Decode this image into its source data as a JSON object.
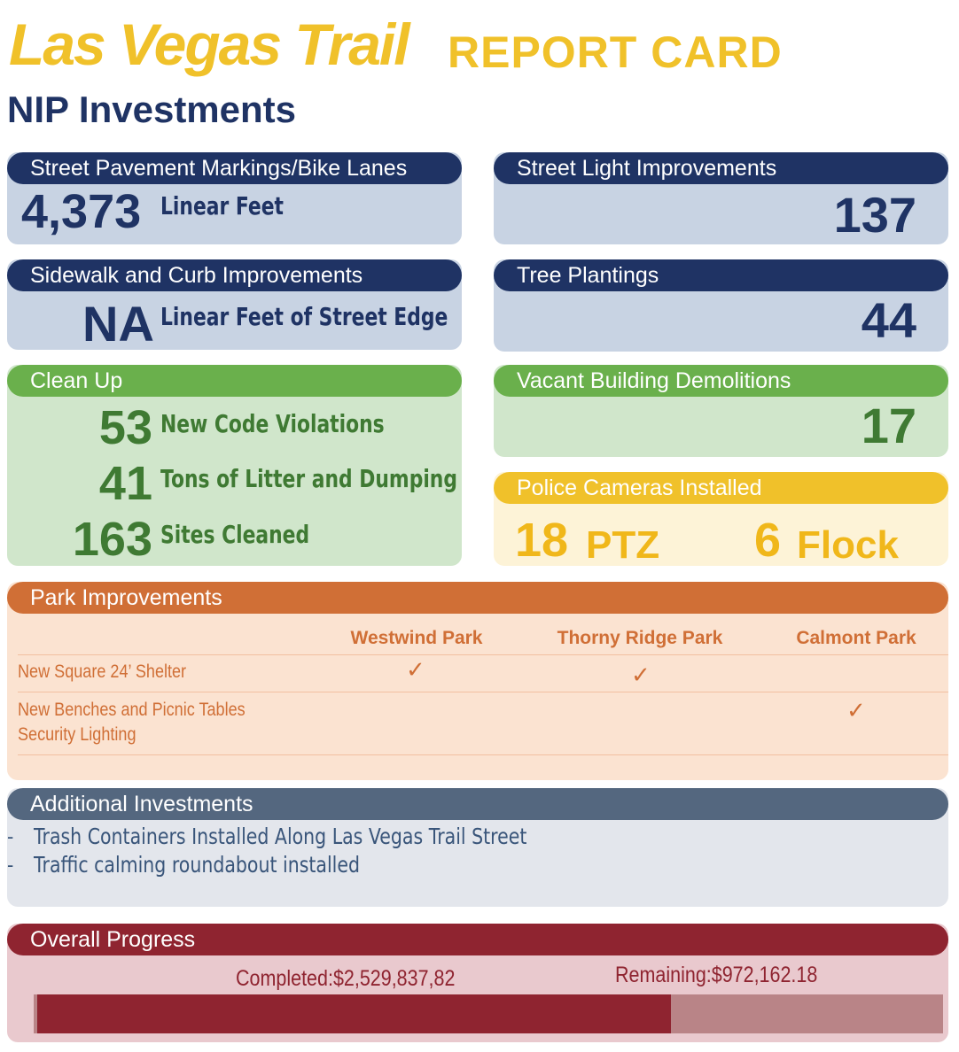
{
  "header": {
    "title": "Las Vegas Trail",
    "title_suffix": "REPORT CARD",
    "subtitle": "NIP Investments"
  },
  "cards": {
    "pavement": {
      "label": "Street Pavement Markings/Bike Lanes",
      "value": "4,373",
      "unit": "Linear Feet"
    },
    "streetlight": {
      "label": "Street Light Improvements",
      "value": "137"
    },
    "sidewalk": {
      "label": "Sidewalk and Curb Improvements",
      "value": "NA",
      "unit": "Linear Feet of Street Edge"
    },
    "trees": {
      "label": "Tree Plantings",
      "value": "44"
    },
    "cleanup": {
      "label": "Clean Up",
      "items": [
        {
          "value": "53",
          "unit": "New Code Violations"
        },
        {
          "value": "41",
          "unit": "Tons of Litter and Dumping"
        },
        {
          "value": "163",
          "unit": "Sites Cleaned"
        }
      ]
    },
    "demolitions": {
      "label": "Vacant Building Demolitions",
      "value": "17"
    },
    "cameras": {
      "label": "Police Cameras Installed",
      "ptz_value": "18",
      "ptz_label": "PTZ",
      "flock_value": "6",
      "flock_label": "Flock"
    }
  },
  "parks": {
    "label": "Park Improvements",
    "columns": [
      "Westwind Park",
      "Thorny Ridge Park",
      "Calmont Park"
    ],
    "check_glyph": "✓",
    "rows": [
      {
        "label": "New Square 24’ Shelter",
        "checks": [
          true,
          true,
          false
        ]
      },
      {
        "label": "New Benches and Picnic Tables",
        "checks": [
          false,
          false,
          true
        ]
      },
      {
        "label": "Security Lighting",
        "checks": [
          false,
          false,
          false
        ]
      }
    ]
  },
  "additional": {
    "label": "Additional Investments",
    "bullet": "-",
    "items": [
      "Trash Containers Installed Along Las Vegas Trail Street",
      "Traffic calming roundabout installed"
    ]
  },
  "progress": {
    "label": "Overall Progress",
    "completed_text": "Completed:$2,529,837,82",
    "remaining_text": "Remaining:$972,162.18",
    "fraction_completed": 0.7
  },
  "colors": {
    "navy": "#1f3364",
    "green": "#6ab04c",
    "yellow": "#f0c12a",
    "orange": "#d06f36",
    "slate": "#54677f",
    "red": "#8f2430"
  }
}
